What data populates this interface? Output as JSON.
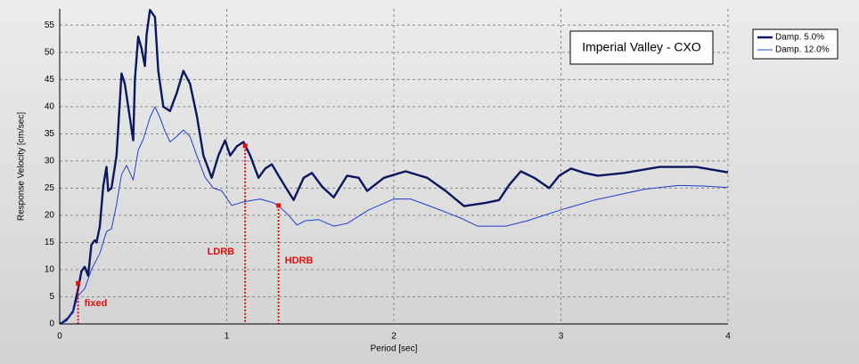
{
  "chart_data": {
    "type": "line",
    "title": "Imperial Valley - CXO",
    "x_label": "Period [sec]",
    "y_label": "Response Velocity [cm/sec]",
    "xlim": [
      0,
      4
    ],
    "xticks": [
      0,
      1,
      2,
      3,
      4
    ],
    "ylim": [
      0,
      58
    ],
    "yticks": [
      0,
      5,
      10,
      15,
      20,
      25,
      30,
      35,
      40,
      45,
      50,
      55
    ],
    "grid": true,
    "legend": "outside-top-right",
    "series": [
      {
        "name": "Damp. 5.0%",
        "color": "#0b1760",
        "width": 2.4,
        "x": [
          0,
          0.04,
          0.08,
          0.11,
          0.13,
          0.15,
          0.17,
          0.19,
          0.21,
          0.22,
          0.24,
          0.26,
          0.28,
          0.29,
          0.31,
          0.34,
          0.37,
          0.39,
          0.41,
          0.44,
          0.45,
          0.47,
          0.49,
          0.51,
          0.52,
          0.54,
          0.57,
          0.59,
          0.62,
          0.66,
          0.7,
          0.74,
          0.78,
          0.82,
          0.86,
          0.91,
          0.95,
          0.99,
          1.02,
          1.06,
          1.1,
          1.14,
          1.19,
          1.23,
          1.27,
          1.31,
          1.35,
          1.4,
          1.46,
          1.51,
          1.57,
          1.64,
          1.72,
          1.79,
          1.84,
          1.94,
          2.07,
          2.2,
          2.31,
          2.42,
          2.55,
          2.63,
          2.69,
          2.76,
          2.84,
          2.93,
          2.99,
          3.06,
          3.14,
          3.22,
          3.38,
          3.59,
          3.81,
          4.0
        ],
        "values": [
          0,
          0.7,
          2.3,
          6.4,
          9.7,
          10.5,
          8.9,
          14.6,
          15.4,
          15,
          17.9,
          25.3,
          28.9,
          24.5,
          25,
          31,
          46.1,
          44.2,
          40,
          33.8,
          45,
          52.9,
          50.7,
          47.5,
          53.2,
          57.8,
          56.5,
          46.6,
          40,
          39.2,
          42.5,
          46.6,
          44.2,
          38.4,
          31,
          26.9,
          31,
          33.8,
          31,
          32.7,
          33.5,
          31,
          26.9,
          28.6,
          29.4,
          27.3,
          25.3,
          22.8,
          26.9,
          27.8,
          25.3,
          23.3,
          27.3,
          26.9,
          24.5,
          26.9,
          28.1,
          26.9,
          24.5,
          21.7,
          22.3,
          22.8,
          25.6,
          28.1,
          26.9,
          25,
          27.3,
          28.6,
          27.8,
          27.3,
          27.8,
          28.9,
          28.9,
          27.9
        ]
      },
      {
        "name": "Damp. 12.0%",
        "color": "#1f3fd0",
        "width": 1,
        "x": [
          0,
          0.08,
          0.11,
          0.15,
          0.19,
          0.24,
          0.28,
          0.31,
          0.34,
          0.37,
          0.4,
          0.44,
          0.47,
          0.5,
          0.54,
          0.57,
          0.6,
          0.63,
          0.66,
          0.7,
          0.74,
          0.78,
          0.82,
          0.87,
          0.92,
          0.97,
          1.03,
          1.1,
          1.2,
          1.28,
          1.32,
          1.37,
          1.42,
          1.47,
          1.55,
          1.64,
          1.72,
          1.85,
          2.0,
          2.1,
          2.25,
          2.4,
          2.5,
          2.67,
          2.8,
          3.0,
          3.2,
          3.5,
          3.7,
          3.85,
          4.0
        ],
        "values": [
          0,
          2,
          5.2,
          6.5,
          10,
          13,
          17,
          17.5,
          22,
          27.5,
          29.2,
          26.5,
          32,
          34,
          38,
          40,
          38,
          35.5,
          33.5,
          34.5,
          35.7,
          34.5,
          31,
          27,
          25,
          24.5,
          21.8,
          22.5,
          23,
          22.3,
          21.5,
          20,
          18.2,
          19,
          19.2,
          18,
          18.5,
          21,
          23,
          23,
          21.3,
          19.5,
          18,
          18,
          19,
          21,
          22.8,
          24.8,
          25.5,
          25.4,
          25.1
        ]
      }
    ],
    "annotations": [
      {
        "label": "fixed",
        "x": 0.11,
        "y": 7.5,
        "color": "#e01010"
      },
      {
        "label": "LDRB",
        "x": 1.11,
        "y": 32.8,
        "color": "#e01010"
      },
      {
        "label": "HDRB",
        "x": 1.31,
        "y": 21.8,
        "color": "#e01010"
      }
    ]
  }
}
